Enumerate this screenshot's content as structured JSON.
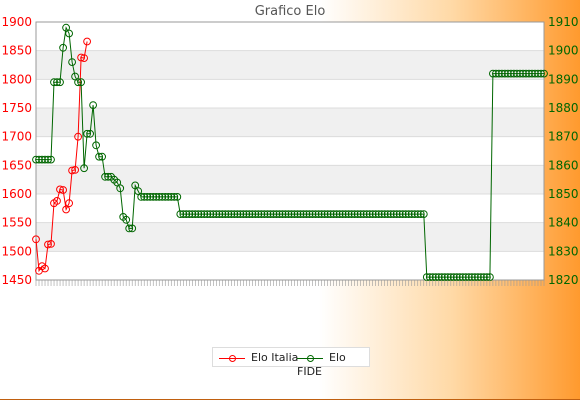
{
  "chart_data": {
    "type": "line",
    "title": "Grafico Elo",
    "xlabel": "",
    "ylabel": "",
    "left_axis": {
      "ticks": [
        1450,
        1500,
        1550,
        1600,
        1650,
        1700,
        1750,
        1800,
        1850,
        1900
      ],
      "ylim": [
        1450,
        1900
      ],
      "color": "#ff0000"
    },
    "right_axis": {
      "ticks": [
        1820,
        1830,
        1840,
        1850,
        1860,
        1870,
        1880,
        1890,
        1900,
        1910
      ],
      "ylim": [
        1820,
        1910
      ],
      "color": "#006600"
    },
    "grid": true,
    "legend_position": "bottom",
    "series": [
      {
        "name": "Elo Italia",
        "axis": "left",
        "color": "#ff0000",
        "values": [
          1521,
          1466,
          1474,
          1470,
          1512,
          1513,
          1584,
          1588,
          1608,
          1607,
          1573,
          1584,
          1641,
          1642,
          1700,
          1838,
          1837,
          1866
        ]
      },
      {
        "name": "Elo FIDE",
        "axis": "right",
        "color": "#006600",
        "values": [
          1862,
          1862,
          1862,
          1862,
          1862,
          1862,
          1889,
          1889,
          1889,
          1901,
          1908,
          1906,
          1896,
          1891,
          1889,
          1889,
          1859,
          1871,
          1871,
          1881,
          1867,
          1863,
          1863,
          1856,
          1856,
          1856,
          1855,
          1854,
          1852,
          1842,
          1841,
          1838,
          1838,
          1853,
          1851,
          1849,
          1849,
          1849,
          1849,
          1849,
          1849,
          1849,
          1849,
          1849,
          1849,
          1849,
          1849,
          1849,
          1843,
          1843,
          1843,
          1843,
          1843,
          1843,
          1843,
          1843,
          1843,
          1843,
          1843,
          1843,
          1843,
          1843,
          1843,
          1843,
          1843,
          1843,
          1843,
          1843,
          1843,
          1843,
          1843,
          1843,
          1843,
          1843,
          1843,
          1843,
          1843,
          1843,
          1843,
          1843,
          1843,
          1843,
          1843,
          1843,
          1843,
          1843,
          1843,
          1843,
          1843,
          1843,
          1843,
          1843,
          1843,
          1843,
          1843,
          1843,
          1843,
          1843,
          1843,
          1843,
          1843,
          1843,
          1843,
          1843,
          1843,
          1843,
          1843,
          1843,
          1843,
          1843,
          1843,
          1843,
          1843,
          1843,
          1843,
          1843,
          1843,
          1843,
          1843,
          1843,
          1843,
          1843,
          1843,
          1843,
          1843,
          1843,
          1843,
          1843,
          1843,
          1843,
          1821,
          1821,
          1821,
          1821,
          1821,
          1821,
          1821,
          1821,
          1821,
          1821,
          1821,
          1821,
          1821,
          1821,
          1821,
          1821,
          1821,
          1821,
          1821,
          1821,
          1821,
          1821,
          1892,
          1892,
          1892,
          1892,
          1892,
          1892,
          1892,
          1892,
          1892,
          1892,
          1892,
          1892,
          1892,
          1892,
          1892,
          1892,
          1892,
          1892
        ]
      }
    ]
  },
  "legend": {
    "items": [
      "Elo Italia",
      "Elo FIDE"
    ]
  }
}
